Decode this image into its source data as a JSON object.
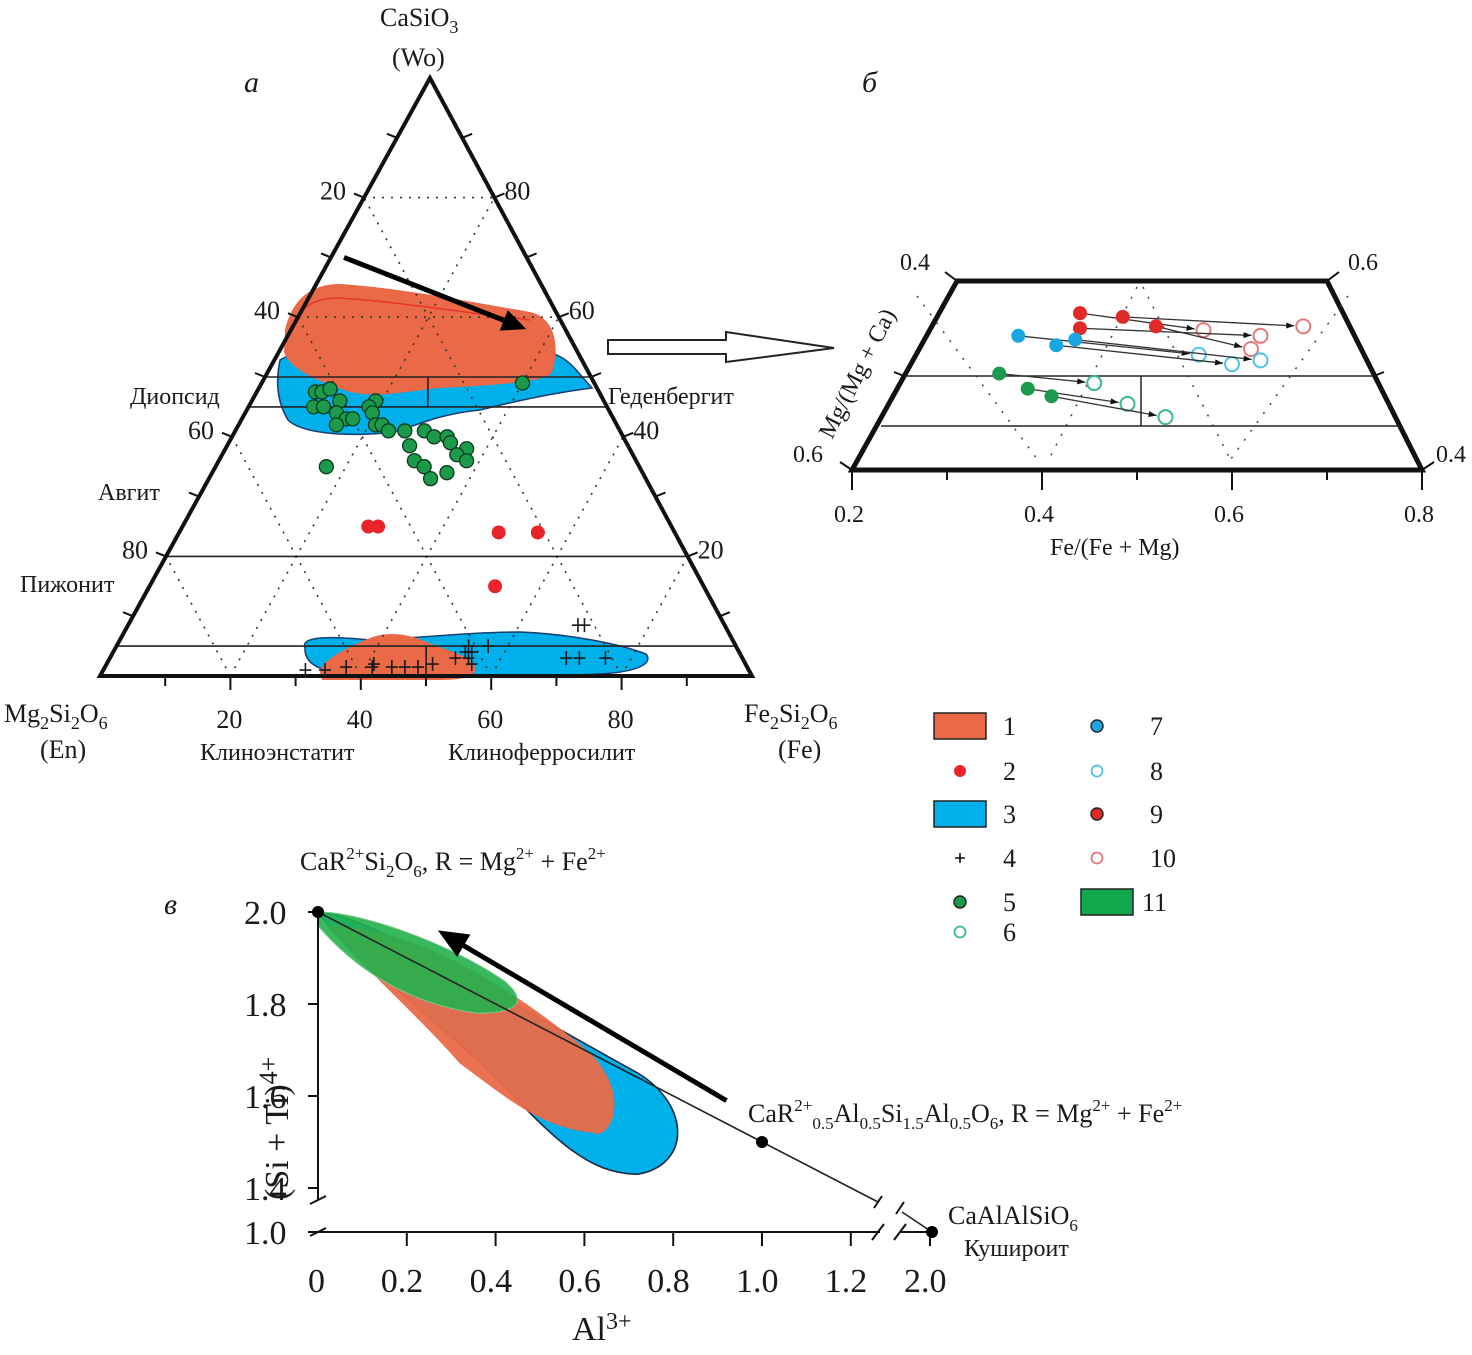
{
  "chart_data": [
    {
      "id": "a",
      "type": "scatter",
      "subtype": "ternary-pyroxene-quadrilateral",
      "panel_label": "а",
      "apex_top": {
        "formula": "CaSiO",
        "sub": "3",
        "abbr": "(Wo)"
      },
      "apex_left": {
        "formula": [
          "Mg",
          "2",
          "Si",
          "2",
          "O",
          "6"
        ],
        "abbr": "(En)"
      },
      "apex_right": {
        "formula": [
          "Fe",
          "2",
          "Si",
          "2",
          "O",
          "6"
        ],
        "abbr": "(Fe)"
      },
      "left_axis_ticks": [
        "20",
        "40",
        "60",
        "80"
      ],
      "right_axis_ticks": [
        "80",
        "60",
        "40",
        "20"
      ],
      "bottom_axis_ticks": [
        "20",
        "40",
        "60",
        "80"
      ],
      "field_names": {
        "diopside": "Диопсид",
        "hedenbergite": "Геденбергит",
        "augite": "Авгит",
        "pigeonite": "Пижонит",
        "clinoenstatite": "Клиноэнстатит",
        "clinoferrosilite": "Клиноферросилит"
      },
      "trend_arrow": {
        "from": {
          "wo": 70,
          "fs": 2
        },
        "to": {
          "wo": 58,
          "fs": 36
        }
      },
      "series": [
        {
          "name": "5",
          "marker": "filled-circle",
          "color": "#1a9a4a",
          "points_wo_fs": [
            [
              47.5,
              9
            ],
            [
              47.5,
              10
            ],
            [
              48,
              11
            ],
            [
              46,
              13.5
            ],
            [
              45,
              10
            ],
            [
              45,
              11.5
            ],
            [
              44,
              14
            ],
            [
              43,
              16
            ],
            [
              43,
              17
            ],
            [
              42,
              15
            ],
            [
              46,
              19
            ],
            [
              45,
              18.5
            ],
            [
              44,
              19.5
            ],
            [
              42,
              21
            ],
            [
              42,
              22
            ],
            [
              41,
              23.5
            ],
            [
              41,
              26
            ],
            [
              41,
              29
            ],
            [
              40,
              31
            ],
            [
              40,
              33
            ],
            [
              38.5,
              28
            ],
            [
              39,
              34
            ],
            [
              38,
              37
            ],
            [
              37,
              36
            ],
            [
              36,
              30
            ],
            [
              35,
              32
            ],
            [
              33,
              34
            ],
            [
              34,
              36
            ],
            [
              36,
              38
            ],
            [
              35,
              17
            ],
            [
              49,
              40
            ]
          ]
        },
        {
          "name": "2",
          "marker": "filled-circle",
          "color": "#e8232a",
          "points_wo_fs": [
            [
              25,
              28.5
            ],
            [
              25,
              30
            ],
            [
              24,
              49
            ],
            [
              24,
              55
            ],
            [
              15,
              53
            ]
          ]
        },
        {
          "name": "4",
          "marker": "plus",
          "color": "#1a1a1a",
          "points_wo_fs": [
            [
              1,
              31
            ],
            [
              1,
              34
            ],
            [
              1.5,
              37
            ],
            [
              1.5,
              41
            ],
            [
              2,
              41
            ],
            [
              1.5,
              44
            ],
            [
              1.5,
              46
            ],
            [
              1.5,
              48
            ],
            [
              2,
              50
            ],
            [
              4,
              54
            ],
            [
              5,
              54
            ],
            [
              4,
              55
            ],
            [
              3,
              53
            ],
            [
              3,
              55
            ],
            [
              2,
              56
            ],
            [
              5,
              57
            ],
            [
              3,
              70
            ],
            [
              3,
              72
            ],
            [
              3,
              76
            ],
            [
              8.5,
              69
            ],
            [
              8.5,
              70
            ]
          ]
        }
      ],
      "fields": [
        {
          "name": "1",
          "color": "#ea6a48",
          "group": "upper"
        },
        {
          "name": "3",
          "color": "#00b0eb",
          "group": "upper"
        },
        {
          "name": "1",
          "color": "#ea6a48",
          "group": "lower"
        },
        {
          "name": "3",
          "color": "#00b0eb",
          "group": "lower"
        }
      ]
    },
    {
      "id": "b",
      "type": "scatter",
      "subtype": "trapezoid-zoom",
      "panel_label": "б",
      "xlabel": "Fe/(Fe + Mg)",
      "ylabel": "Mg/(Mg + Ca)",
      "x_ticks": [
        "0.2",
        "0.4",
        "0.6",
        "0.8"
      ],
      "xlim": [
        0.2,
        0.8
      ],
      "corner_labels": {
        "top_left": "0.4",
        "top_right": "0.6",
        "bottom_left": "0.6",
        "bottom_right": "0.4"
      },
      "pairs": [
        {
          "from_series": "9",
          "to_series": "10",
          "from": [
            0.44,
            0.17
          ],
          "to": [
            0.57,
            0.26
          ]
        },
        {
          "from_series": "9",
          "to_series": "10",
          "from": [
            0.485,
            0.19
          ],
          "to": [
            0.675,
            0.24
          ]
        },
        {
          "from_series": "9",
          "to_series": "10",
          "from": [
            0.44,
            0.25
          ],
          "to": [
            0.63,
            0.29
          ]
        },
        {
          "from_series": "9",
          "to_series": "10",
          "from": [
            0.52,
            0.24
          ],
          "to": [
            0.62,
            0.36
          ]
        },
        {
          "from_series": "7",
          "to_series": "8",
          "from": [
            0.375,
            0.29
          ],
          "to": [
            0.565,
            0.39
          ]
        },
        {
          "from_series": "7",
          "to_series": "8",
          "from": [
            0.415,
            0.34
          ],
          "to": [
            0.6,
            0.44
          ]
        },
        {
          "from_series": "7",
          "to_series": "8",
          "from": [
            0.435,
            0.31
          ],
          "to": [
            0.63,
            0.42
          ]
        },
        {
          "from_series": "5",
          "to_series": "6",
          "from": [
            0.355,
            0.49
          ],
          "to": [
            0.455,
            0.54
          ]
        },
        {
          "from_series": "5",
          "to_series": "6",
          "from": [
            0.385,
            0.57
          ],
          "to": [
            0.49,
            0.65
          ]
        },
        {
          "from_series": "5",
          "to_series": "6",
          "from": [
            0.41,
            0.61
          ],
          "to": [
            0.53,
            0.72
          ]
        }
      ]
    },
    {
      "id": "c",
      "type": "scatter",
      "subtype": "field-plot",
      "panel_label": "в",
      "xlabel": "Al",
      "xlabel_sup": "3+",
      "ylabel": "(Si + Ti)",
      "ylabel_sup": "4+",
      "x_ticks": [
        "0",
        "0.2",
        "0.4",
        "0.6",
        "0.8",
        "1.0",
        "1.2",
        "2.0"
      ],
      "y_ticks": [
        "2.0",
        "1.8",
        "1.6",
        "1.4",
        "1.0"
      ],
      "xlim": [
        0,
        1.27
      ],
      "ylim": [
        1.38,
        2.0
      ],
      "axis_breaks": true,
      "endmembers": [
        {
          "x": 0,
          "y": 2.0,
          "label_parts": [
            "CaR",
            "2+",
            "Si",
            "2",
            "O",
            "6",
            ", R = Mg",
            "2+",
            " + Fe",
            "2+"
          ]
        },
        {
          "x": 1.0,
          "y": 1.5,
          "label_parts": [
            "CaR",
            "2+",
            "0.5",
            "Al",
            "0.5",
            "Si",
            "1.5",
            "Al",
            "0.5",
            "O",
            "6",
            ", R = Mg",
            "2+",
            " + Fe",
            "2+"
          ]
        },
        {
          "x": 2.0,
          "y": 1.0,
          "label": "CaAlAlSiO",
          "label_sub": "6",
          "sublabel": "Кушироит"
        }
      ],
      "trend_arrow": {
        "from": [
          0.92,
          1.59
        ],
        "to": [
          0.27,
          1.96
        ]
      },
      "fields": [
        {
          "name": "3",
          "color": "#00b0eb"
        },
        {
          "name": "1",
          "color": "#ea6a48"
        },
        {
          "name": "11",
          "color": "#22b14c"
        }
      ]
    }
  ],
  "legend": {
    "items": [
      {
        "label": "1",
        "type": "rect",
        "color": "#ea6a48"
      },
      {
        "label": "2",
        "type": "dot",
        "color": "#e8232a"
      },
      {
        "label": "3",
        "type": "rect",
        "color": "#00b0eb"
      },
      {
        "label": "4",
        "type": "plus",
        "color": "#1a1a1a"
      },
      {
        "label": "5",
        "type": "filled-circle",
        "color": "#1a9a4a"
      },
      {
        "label": "6",
        "type": "open-circle",
        "color": "#3cb88a"
      },
      {
        "label": "7",
        "type": "filled-circle",
        "color": "#1aa6e0"
      },
      {
        "label": "8",
        "type": "open-circle",
        "color": "#4fc3e8"
      },
      {
        "label": "9",
        "type": "filled-circle",
        "color": "#e02a2a"
      },
      {
        "label": "10",
        "type": "open-circle",
        "color": "#e27a7a"
      },
      {
        "label": "11",
        "type": "rect",
        "color": "#10a84a"
      }
    ]
  }
}
